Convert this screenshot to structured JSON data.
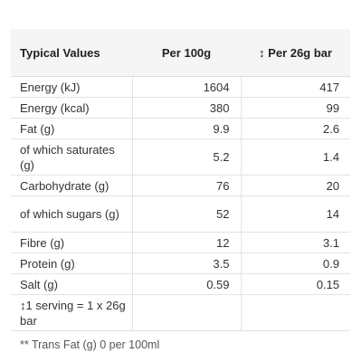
{
  "table": {
    "headers": [
      "Typical Values",
      "Per 100g",
      "↕ Per 26g bar"
    ],
    "rows": [
      {
        "label": "Energy (kJ)",
        "per100": "1604",
        "perBar": "417"
      },
      {
        "label": "Energy (kcal)",
        "per100": "380",
        "perBar": "99"
      },
      {
        "label": "Fat (g)",
        "per100": "9.9",
        "perBar": "2.6"
      },
      {
        "label": "of which saturates (g)",
        "per100": "5.2",
        "perBar": "1.4"
      },
      {
        "label": "Carbohydrate (g)",
        "per100": "76",
        "perBar": "20"
      },
      {
        "label": "of which sugars (g)",
        "per100": "52",
        "perBar": "14"
      },
      {
        "label": "Fibre (g)",
        "per100": "12",
        "perBar": "3.1"
      },
      {
        "label": "Protein (g)",
        "per100": "3.5",
        "perBar": "0.9"
      },
      {
        "label": "Salt (g)",
        "per100": "0.59",
        "perBar": "0.15"
      },
      {
        "label": "↕1 serving = 1 x 26g bar",
        "per100": "",
        "perBar": ""
      }
    ]
  },
  "footnote": "** Trans Fat (g)  0 per 100ml"
}
